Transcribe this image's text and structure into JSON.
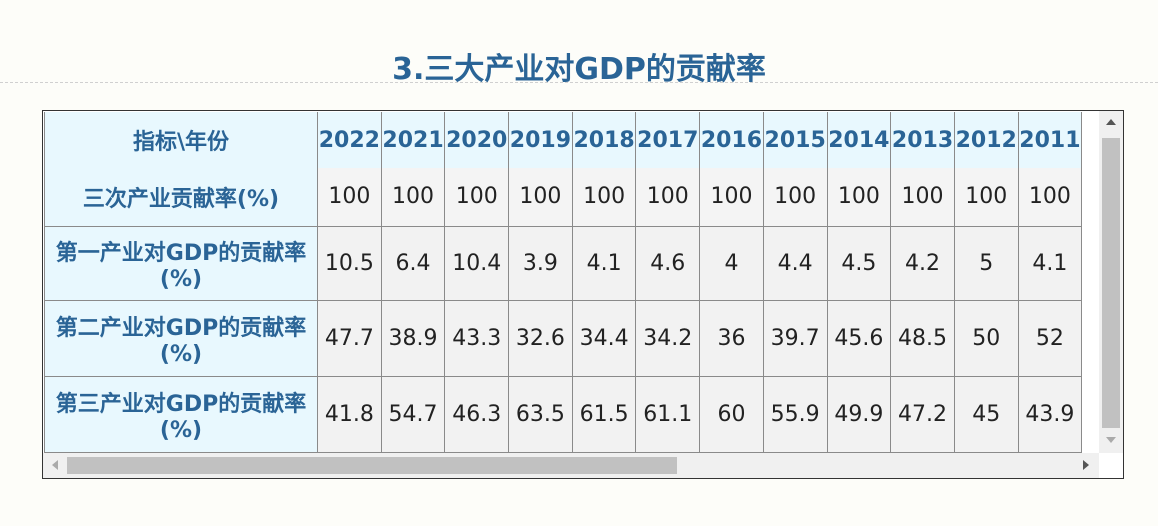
{
  "title": "3.三大产业对GDP的贡献率",
  "table": {
    "header": [
      "指标\\年份",
      "2022",
      "2021",
      "2020",
      "2019",
      "2018",
      "2017",
      "2016",
      "2015",
      "2014",
      "2013",
      "2012",
      "2011"
    ],
    "rows": [
      [
        "三次产业贡献率(%)",
        100,
        100,
        100,
        100,
        100,
        100,
        100,
        100,
        100,
        100,
        100,
        100
      ],
      [
        "第一产业对GDP的贡献率(%)",
        10.5,
        6.4,
        10.4,
        3.9,
        4.1,
        4.6,
        4,
        4.4,
        4.5,
        4.2,
        5,
        4.1
      ],
      [
        "第二产业对GDP的贡献率(%)",
        47.7,
        38.9,
        43.3,
        32.6,
        34.4,
        34.2,
        36,
        39.7,
        45.6,
        48.5,
        50,
        52
      ],
      [
        "第三产业对GDP的贡献率(%)",
        41.8,
        54.7,
        46.3,
        63.5,
        61.5,
        61.1,
        60,
        55.9,
        49.9,
        47.2,
        45,
        43.9
      ]
    ]
  }
}
